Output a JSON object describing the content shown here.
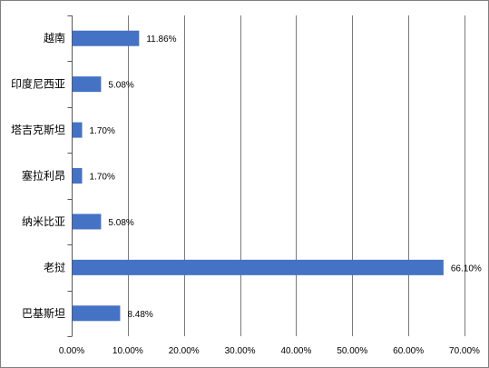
{
  "chart_data": {
    "type": "bar",
    "orientation": "horizontal",
    "categories": [
      "越南",
      "印度尼西亚",
      "塔吉克斯坦",
      "塞拉利昂",
      "纳米比亚",
      "老挝",
      "巴基斯坦"
    ],
    "values": [
      11.86,
      5.08,
      1.7,
      1.7,
      5.08,
      66.1,
      8.48
    ],
    "data_labels": [
      "11.86%",
      "5.08%",
      "1.70%",
      "1.70%",
      "5.08%",
      "66.10%",
      "8.48%"
    ],
    "xlim": [
      0,
      70
    ],
    "x_ticks": [
      0,
      10,
      20,
      30,
      40,
      50,
      60,
      70
    ],
    "x_tick_labels": [
      "0.00%",
      "10.00%",
      "20.00%",
      "30.00%",
      "40.00%",
      "50.00%",
      "60.00%",
      "70.00%"
    ],
    "grid": "vertical",
    "legend": "none",
    "bar_color": "#4472C4",
    "title": "",
    "xlabel": "",
    "ylabel": ""
  }
}
